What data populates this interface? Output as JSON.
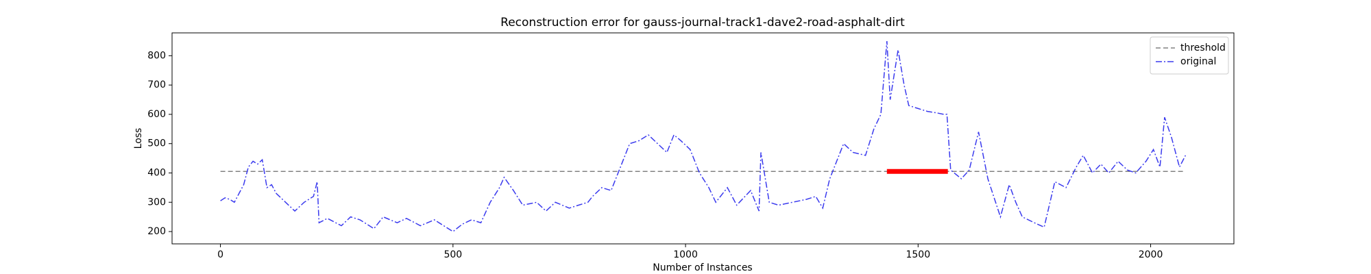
{
  "chart_data": {
    "type": "line",
    "title": "Reconstruction error for gauss-journal-track1-dave2-road-asphalt-dirt",
    "xlabel": "Number of Instances",
    "ylabel": "Loss",
    "series": [
      {
        "name": "threshold",
        "color": "#808080",
        "dash": "dashed",
        "x": [
          0,
          2075
        ],
        "values": [
          405,
          405
        ]
      },
      {
        "name": "original",
        "color": "#3a3aee",
        "dash": "dashdot",
        "x": [
          0,
          10,
          20,
          30,
          40,
          50,
          60,
          70,
          80,
          90,
          100,
          110,
          120,
          140,
          160,
          180,
          200,
          208,
          212,
          230,
          260,
          280,
          300,
          330,
          350,
          380,
          400,
          430,
          460,
          480,
          500,
          520,
          540,
          560,
          580,
          600,
          610,
          630,
          650,
          680,
          700,
          720,
          750,
          770,
          790,
          800,
          820,
          840,
          860,
          880,
          900,
          920,
          940,
          960,
          975,
          990,
          1010,
          1030,
          1050,
          1065,
          1090,
          1110,
          1140,
          1158,
          1162,
          1180,
          1200,
          1230,
          1260,
          1280,
          1295,
          1310,
          1340,
          1360,
          1387,
          1405,
          1420,
          1433,
          1440,
          1457,
          1470,
          1480,
          1500,
          1520,
          1540,
          1555,
          1562,
          1570,
          1593,
          1610,
          1630,
          1650,
          1677,
          1696,
          1710,
          1724,
          1750,
          1771,
          1794,
          1818,
          1840,
          1855,
          1875,
          1893,
          1910,
          1930,
          1950,
          1968,
          1990,
          2006,
          2020,
          2030,
          2045,
          2062,
          2075
        ],
        "values": [
          305,
          315,
          310,
          300,
          330,
          360,
          420,
          440,
          430,
          445,
          350,
          360,
          330,
          300,
          270,
          300,
          320,
          370,
          230,
          245,
          220,
          250,
          240,
          210,
          250,
          230,
          245,
          220,
          240,
          220,
          200,
          225,
          240,
          230,
          300,
          350,
          385,
          340,
          290,
          300,
          270,
          300,
          280,
          290,
          300,
          320,
          350,
          340,
          420,
          500,
          510,
          530,
          500,
          470,
          530,
          510,
          480,
          400,
          350,
          300,
          350,
          290,
          340,
          270,
          470,
          300,
          290,
          300,
          310,
          320,
          280,
          380,
          500,
          470,
          460,
          550,
          600,
          850,
          650,
          820,
          700,
          630,
          620,
          610,
          605,
          600,
          600,
          410,
          380,
          410,
          540,
          380,
          250,
          360,
          300,
          250,
          230,
          215,
          370,
          350,
          420,
          460,
          400,
          430,
          400,
          440,
          410,
          400,
          440,
          480,
          420,
          590,
          520,
          420,
          460
        ]
      }
    ],
    "anomalies": {
      "color": "#ff0000",
      "x": [
        1433,
        1564
      ],
      "values": [
        405,
        405
      ]
    },
    "xlim": [
      -104,
      2179
    ],
    "ylim": [
      158,
      878
    ],
    "xticks": [
      0,
      500,
      1000,
      1500,
      2000
    ],
    "yticks": [
      200,
      300,
      400,
      500,
      600,
      700,
      800
    ],
    "legend": "upper right"
  }
}
